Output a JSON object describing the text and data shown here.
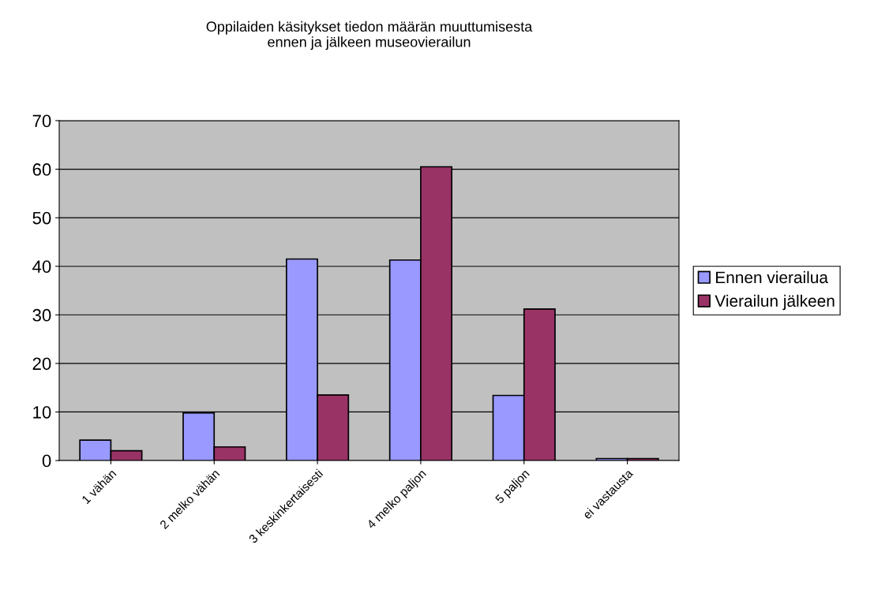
{
  "chart_data": {
    "type": "bar",
    "title": "Oppilaiden käsitykset tiedon määrän muuttumisesta\nennen ja jälkeen museovierailun",
    "categories": [
      "1 vähän",
      "2 melko vähän",
      "3 keskinkertaisesti",
      "4 melko paljon",
      "5 paljon",
      "ei vastausta"
    ],
    "series": [
      {
        "name": "Ennen vierailua",
        "color": "#9999ff",
        "values": [
          4.2,
          9.8,
          41.5,
          41.3,
          13.4,
          0.4
        ]
      },
      {
        "name": "Vierailun jälkeen",
        "color": "#993366",
        "values": [
          2.0,
          2.8,
          13.5,
          60.5,
          31.2,
          0.4
        ]
      }
    ],
    "ylim": [
      0,
      70
    ],
    "yticks": [
      0,
      10,
      20,
      30,
      40,
      50,
      60,
      70
    ],
    "grid": "y",
    "legend": "right"
  }
}
